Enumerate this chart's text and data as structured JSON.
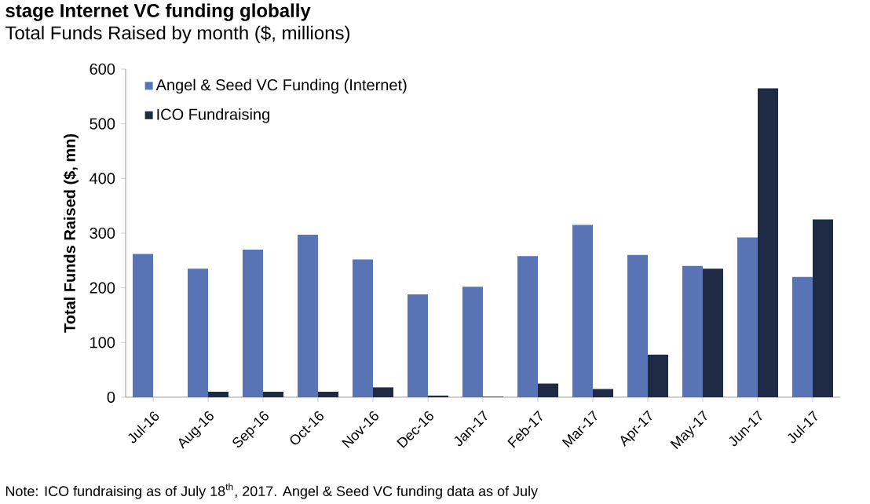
{
  "chart_data": {
    "type": "bar",
    "title": "stage Internet VC funding globally",
    "subtitle": "Total Funds Raised by month ($, millions)",
    "ylabel": "Total Funds Raised ($, mn)",
    "categories": [
      "Jul-16",
      "Aug-16",
      "Sep-16",
      "Oct-16",
      "Nov-16",
      "Dec-16",
      "Jan-17",
      "Feb-17",
      "Mar-17",
      "Apr-17",
      "May-17",
      "Jun-17",
      "Jul-17"
    ],
    "series": [
      {
        "name": "Angel & Seed VC Funding (Internet)",
        "color": "#5874b4",
        "values": [
          262,
          235,
          270,
          297,
          252,
          188,
          202,
          258,
          315,
          260,
          240,
          292,
          220
        ]
      },
      {
        "name": "ICO Fundraising",
        "color": "#1f2a44",
        "values": [
          0,
          10,
          10,
          10,
          18,
          3,
          1,
          25,
          15,
          78,
          235,
          565,
          325
        ]
      }
    ],
    "ylim": [
      0,
      600
    ],
    "yticks": [
      0,
      100,
      200,
      300,
      400,
      500,
      600
    ],
    "legend": "top left",
    "annotations": [
      "Note: ICO fundraising as of July 18$^{th}$, 2017. Angel & Seed VC funding data as of July"
    ]
  }
}
